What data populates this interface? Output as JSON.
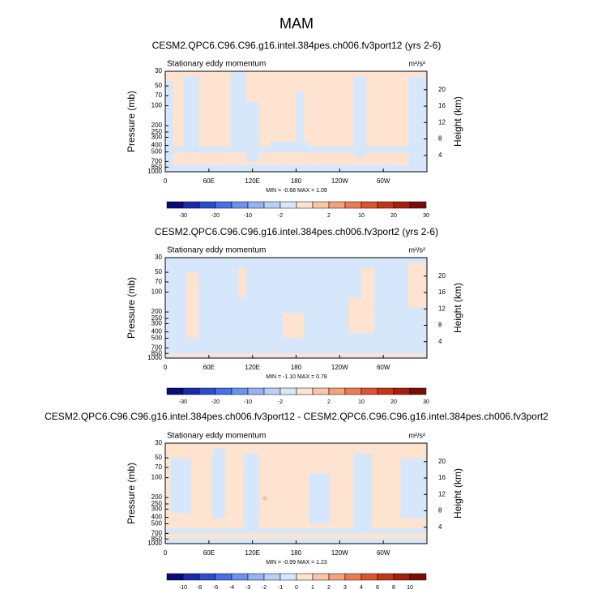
{
  "title": "MAM",
  "chart_data": [
    {
      "type": "contour",
      "title": "CESM2.QPC6.C96.C96.g16.intel.384pes.ch006.fv3port12 (yrs 2-6)",
      "left_label": "Stationary eddy momentum",
      "units": "m²/s²",
      "ylabel": "Pressure (mb)",
      "y2label": "Height (km)",
      "ylog": true,
      "ylim": [
        30,
        1000
      ],
      "yticks": [
        30,
        50,
        70,
        100,
        200,
        250,
        300,
        400,
        500,
        700,
        850,
        1000
      ],
      "y2lim": [
        24.5,
        0
      ],
      "y2ticks": [
        4,
        8,
        12,
        16,
        20
      ],
      "xlim": [
        0,
        360
      ],
      "xticks": [
        0,
        {
          "value": 60,
          "label": "60E"
        },
        {
          "value": 120,
          "label": "120E"
        },
        180,
        {
          "value": 240,
          "label": "120W"
        },
        {
          "value": 300,
          "label": "60W"
        }
      ],
      "stats": "MIN = -0.68  MAX =  1.09",
      "colorbar_labels": [
        -30,
        -20,
        -10,
        -2,
        2,
        10,
        20,
        30
      ],
      "colors": [
        "#0a0a78",
        "#1a2aa8",
        "#2c4ccf",
        "#4670e6",
        "#6a92ef",
        "#93b3f5",
        "#b9cff8",
        "#d7e7fb",
        "#fde3d0",
        "#f9c6a8",
        "#f4a17c",
        "#ec7a52",
        "#de5430",
        "#c5351a",
        "#a51f0d",
        "#7a0e05"
      ]
    },
    {
      "type": "contour",
      "title": "CESM2.QPC6.C96.C96.g16.intel.384pes.ch006.fv3port2 (yrs 2-6)",
      "left_label": "Stationary eddy momentum",
      "units": "m²/s²",
      "ylabel": "Pressure (mb)",
      "y2label": "Height (km)",
      "ylog": true,
      "ylim": [
        30,
        1000
      ],
      "yticks": [
        30,
        50,
        70,
        100,
        200,
        250,
        300,
        400,
        500,
        700,
        850,
        1000
      ],
      "y2lim": [
        24.5,
        0
      ],
      "y2ticks": [
        4,
        8,
        12,
        16,
        20
      ],
      "xlim": [
        0,
        360
      ],
      "xticks": [
        0,
        {
          "value": 60,
          "label": "60E"
        },
        {
          "value": 120,
          "label": "120E"
        },
        180,
        {
          "value": 240,
          "label": "120W"
        },
        {
          "value": 300,
          "label": "60W"
        }
      ],
      "stats": "MIN = -1.10  MAX =  0.78",
      "colorbar_labels": [
        -30,
        -20,
        -10,
        -2,
        2,
        10,
        20,
        30
      ],
      "colors": [
        "#0a0a78",
        "#1a2aa8",
        "#2c4ccf",
        "#4670e6",
        "#6a92ef",
        "#93b3f5",
        "#b9cff8",
        "#d7e7fb",
        "#fde3d0",
        "#f9c6a8",
        "#f4a17c",
        "#ec7a52",
        "#de5430",
        "#c5351a",
        "#a51f0d",
        "#7a0e05"
      ]
    },
    {
      "type": "contour",
      "title": "CESM2.QPC6.C96.C96.g16.intel.384pes.ch006.fv3port12 - CESM2.QPC6.C96.C96.g16.intel.384pes.ch006.fv3port2",
      "left_label": "Stationary eddy momentum",
      "units": "m²/s²",
      "ylabel": "Pressure (mb)",
      "y2label": "Height (km)",
      "ylog": true,
      "ylim": [
        30,
        1000
      ],
      "yticks": [
        30,
        50,
        70,
        100,
        200,
        250,
        300,
        400,
        500,
        700,
        850,
        1000
      ],
      "y2lim": [
        24.5,
        0
      ],
      "y2ticks": [
        4,
        8,
        12,
        16,
        20
      ],
      "xlim": [
        0,
        360
      ],
      "xticks": [
        0,
        {
          "value": 60,
          "label": "60E"
        },
        {
          "value": 120,
          "label": "120E"
        },
        180,
        {
          "value": 240,
          "label": "120W"
        },
        {
          "value": 300,
          "label": "60W"
        }
      ],
      "stats": "MIN = -0.99  MAX =  1.23",
      "colorbar_labels": [
        -10,
        -8,
        -6,
        -4,
        -3,
        -2,
        -1,
        0,
        1,
        2,
        3,
        4,
        6,
        8,
        10
      ],
      "colors": [
        "#0a0a78",
        "#1a2aa8",
        "#2c4ccf",
        "#4670e6",
        "#6a92ef",
        "#93b3f5",
        "#b9cff8",
        "#d7e7fb",
        "#fde3d0",
        "#f9c6a8",
        "#f4a17c",
        "#ec7a52",
        "#de5430",
        "#c5351a",
        "#a51f0d",
        "#7a0e05"
      ]
    }
  ]
}
